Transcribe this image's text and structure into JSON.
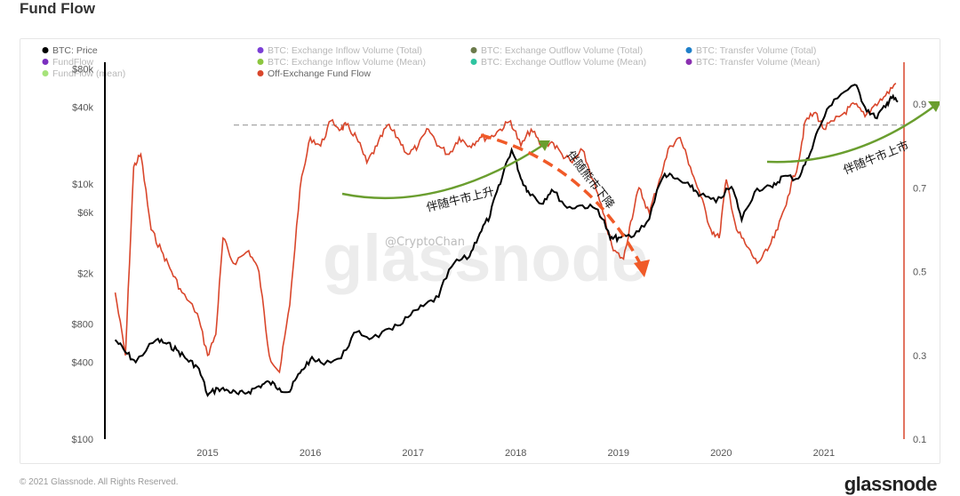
{
  "page": {
    "title": "Fund Flow"
  },
  "watermark": {
    "handle": "@CryptoChan",
    "brand": "glassnode"
  },
  "footer": {
    "copyright": "© 2021 Glassnode. All Rights Reserved.",
    "brand": "glassnode"
  },
  "colors": {
    "price": "#000000",
    "fund_flow": "#d9462b",
    "annotation_green": "#6a9e2f",
    "annotation_orange": "#f05a28",
    "reference": "#999999"
  },
  "legend": [
    {
      "label": "BTC: Price",
      "color": "#000000",
      "active": true
    },
    {
      "label": "BTC: Exchange Inflow Volume (Total)",
      "color": "#7b3fd6",
      "active": false
    },
    {
      "label": "BTC: Exchange Outflow Volume (Total)",
      "color": "#6b7a4a",
      "active": false
    },
    {
      "label": "BTC: Transfer Volume (Total)",
      "color": "#1e7fc9",
      "active": false
    },
    {
      "label": "FundFlow",
      "color": "#7b2fbf",
      "active": false
    },
    {
      "label": "BTC: Exchange Inflow Volume (Mean)",
      "color": "#8cc63f",
      "active": false
    },
    {
      "label": "BTC: Exchange Outflow Volume (Mean)",
      "color": "#2ec4a0",
      "active": false
    },
    {
      "label": "BTC: Transfer Volume (Mean)",
      "color": "#8a2fb0",
      "active": false
    },
    {
      "label": "FundFlow (mean)",
      "color": "#a6e37a",
      "active": false
    },
    {
      "label": "Off-Exchange Fund Flow",
      "color": "#d9462b",
      "active": true
    }
  ],
  "annotations": [
    {
      "text": "伴随牛市上升",
      "color": "#6a9e2f"
    },
    {
      "text": "伴随熊市下降",
      "color": "#f05a28"
    },
    {
      "text": "伴随牛市上市",
      "color": "#6a9e2f"
    }
  ],
  "chart_data": {
    "type": "line",
    "x_ticks": [
      "2015",
      "2016",
      "2017",
      "2018",
      "2019",
      "2020",
      "2021"
    ],
    "left_axis": {
      "scale": "log",
      "ticks": [
        "$100",
        "$400",
        "$800",
        "$2k",
        "$6k",
        "$10k",
        "$40k",
        "$80k"
      ],
      "tick_values": [
        100,
        400,
        800,
        2000,
        6000,
        10000,
        40000,
        80000
      ],
      "ylim": [
        100,
        90000
      ]
    },
    "right_axis": {
      "scale": "linear",
      "ticks": [
        "0.1",
        "0.3",
        "0.5",
        "0.7",
        "0.9"
      ],
      "tick_values": [
        0.1,
        0.3,
        0.5,
        0.7,
        0.9
      ],
      "ylim": [
        0.1,
        1.0
      ]
    },
    "reference_line": {
      "axis": "right",
      "value": 0.85,
      "style": "dashed"
    },
    "series": [
      {
        "name": "BTC: Price",
        "axis": "left",
        "color": "#000000",
        "points": [
          [
            2014.1,
            600
          ],
          [
            2014.2,
            480
          ],
          [
            2014.3,
            400
          ],
          [
            2014.5,
            600
          ],
          [
            2014.6,
            560
          ],
          [
            2014.7,
            500
          ],
          [
            2014.8,
            420
          ],
          [
            2014.9,
            370
          ],
          [
            2015.0,
            220
          ],
          [
            2015.1,
            250
          ],
          [
            2015.2,
            240
          ],
          [
            2015.3,
            225
          ],
          [
            2015.4,
            235
          ],
          [
            2015.5,
            260
          ],
          [
            2015.6,
            280
          ],
          [
            2015.7,
            250
          ],
          [
            2015.8,
            235
          ],
          [
            2015.9,
            330
          ],
          [
            2016.0,
            420
          ],
          [
            2016.1,
            400
          ],
          [
            2016.3,
            430
          ],
          [
            2016.45,
            690
          ],
          [
            2016.6,
            620
          ],
          [
            2016.8,
            720
          ],
          [
            2016.95,
            900
          ],
          [
            2017.1,
            1100
          ],
          [
            2017.25,
            1300
          ],
          [
            2017.4,
            2400
          ],
          [
            2017.55,
            2700
          ],
          [
            2017.65,
            4100
          ],
          [
            2017.75,
            5600
          ],
          [
            2017.85,
            10000
          ],
          [
            2017.96,
            18500
          ],
          [
            2018.05,
            11000
          ],
          [
            2018.12,
            8800
          ],
          [
            2018.25,
            7000
          ],
          [
            2018.35,
            9000
          ],
          [
            2018.5,
            6500
          ],
          [
            2018.65,
            6800
          ],
          [
            2018.8,
            6300
          ],
          [
            2018.92,
            3700
          ],
          [
            2019.0,
            3800
          ],
          [
            2019.15,
            3900
          ],
          [
            2019.3,
            5300
          ],
          [
            2019.45,
            12000
          ],
          [
            2019.55,
            11000
          ],
          [
            2019.7,
            9500
          ],
          [
            2019.8,
            8200
          ],
          [
            2019.95,
            7200
          ],
          [
            2020.1,
            9500
          ],
          [
            2020.2,
            5200
          ],
          [
            2020.35,
            9200
          ],
          [
            2020.5,
            9400
          ],
          [
            2020.6,
            11500
          ],
          [
            2020.75,
            11000
          ],
          [
            2020.85,
            16000
          ],
          [
            2020.96,
            28000
          ],
          [
            2021.1,
            46000
          ],
          [
            2021.3,
            60000
          ],
          [
            2021.4,
            40000
          ],
          [
            2021.5,
            33000
          ],
          [
            2021.6,
            40000
          ],
          [
            2021.65,
            48000
          ],
          [
            2021.72,
            44000
          ]
        ]
      },
      {
        "name": "Off-Exchange Fund Flow",
        "axis": "right",
        "color": "#d9462b",
        "points": [
          [
            2014.1,
            0.45
          ],
          [
            2014.2,
            0.3
          ],
          [
            2014.28,
            0.75
          ],
          [
            2014.35,
            0.78
          ],
          [
            2014.45,
            0.6
          ],
          [
            2014.55,
            0.55
          ],
          [
            2014.65,
            0.5
          ],
          [
            2014.75,
            0.45
          ],
          [
            2014.9,
            0.4
          ],
          [
            2015.0,
            0.3
          ],
          [
            2015.08,
            0.35
          ],
          [
            2015.15,
            0.58
          ],
          [
            2015.25,
            0.52
          ],
          [
            2015.4,
            0.55
          ],
          [
            2015.5,
            0.5
          ],
          [
            2015.6,
            0.3
          ],
          [
            2015.7,
            0.26
          ],
          [
            2015.8,
            0.42
          ],
          [
            2015.9,
            0.7
          ],
          [
            2016.0,
            0.82
          ],
          [
            2016.1,
            0.8
          ],
          [
            2016.2,
            0.86
          ],
          [
            2016.3,
            0.84
          ],
          [
            2016.35,
            0.85
          ],
          [
            2016.45,
            0.82
          ],
          [
            2016.55,
            0.76
          ],
          [
            2016.65,
            0.8
          ],
          [
            2016.75,
            0.85
          ],
          [
            2016.85,
            0.82
          ],
          [
            2016.95,
            0.78
          ],
          [
            2017.05,
            0.8
          ],
          [
            2017.15,
            0.84
          ],
          [
            2017.25,
            0.8
          ],
          [
            2017.35,
            0.78
          ],
          [
            2017.45,
            0.82
          ],
          [
            2017.55,
            0.8
          ],
          [
            2017.65,
            0.82
          ],
          [
            2017.75,
            0.82
          ],
          [
            2017.85,
            0.84
          ],
          [
            2017.95,
            0.86
          ],
          [
            2018.05,
            0.8
          ],
          [
            2018.15,
            0.84
          ],
          [
            2018.25,
            0.8
          ],
          [
            2018.35,
            0.81
          ],
          [
            2018.45,
            0.78
          ],
          [
            2018.55,
            0.76
          ],
          [
            2018.65,
            0.79
          ],
          [
            2018.75,
            0.72
          ],
          [
            2018.85,
            0.64
          ],
          [
            2018.95,
            0.55
          ],
          [
            2019.05,
            0.53
          ],
          [
            2019.12,
            0.62
          ],
          [
            2019.2,
            0.7
          ],
          [
            2019.3,
            0.64
          ],
          [
            2019.4,
            0.72
          ],
          [
            2019.5,
            0.8
          ],
          [
            2019.6,
            0.82
          ],
          [
            2019.7,
            0.75
          ],
          [
            2019.8,
            0.68
          ],
          [
            2019.9,
            0.6
          ],
          [
            2019.98,
            0.58
          ],
          [
            2020.05,
            0.72
          ],
          [
            2020.15,
            0.6
          ],
          [
            2020.25,
            0.56
          ],
          [
            2020.35,
            0.52
          ],
          [
            2020.45,
            0.55
          ],
          [
            2020.55,
            0.6
          ],
          [
            2020.65,
            0.68
          ],
          [
            2020.75,
            0.76
          ],
          [
            2020.82,
            0.86
          ],
          [
            2020.92,
            0.88
          ],
          [
            2021.0,
            0.84
          ],
          [
            2021.1,
            0.86
          ],
          [
            2021.2,
            0.88
          ],
          [
            2021.3,
            0.9
          ],
          [
            2021.4,
            0.87
          ],
          [
            2021.5,
            0.9
          ],
          [
            2021.6,
            0.92
          ],
          [
            2021.7,
            0.95
          ]
        ]
      }
    ]
  }
}
